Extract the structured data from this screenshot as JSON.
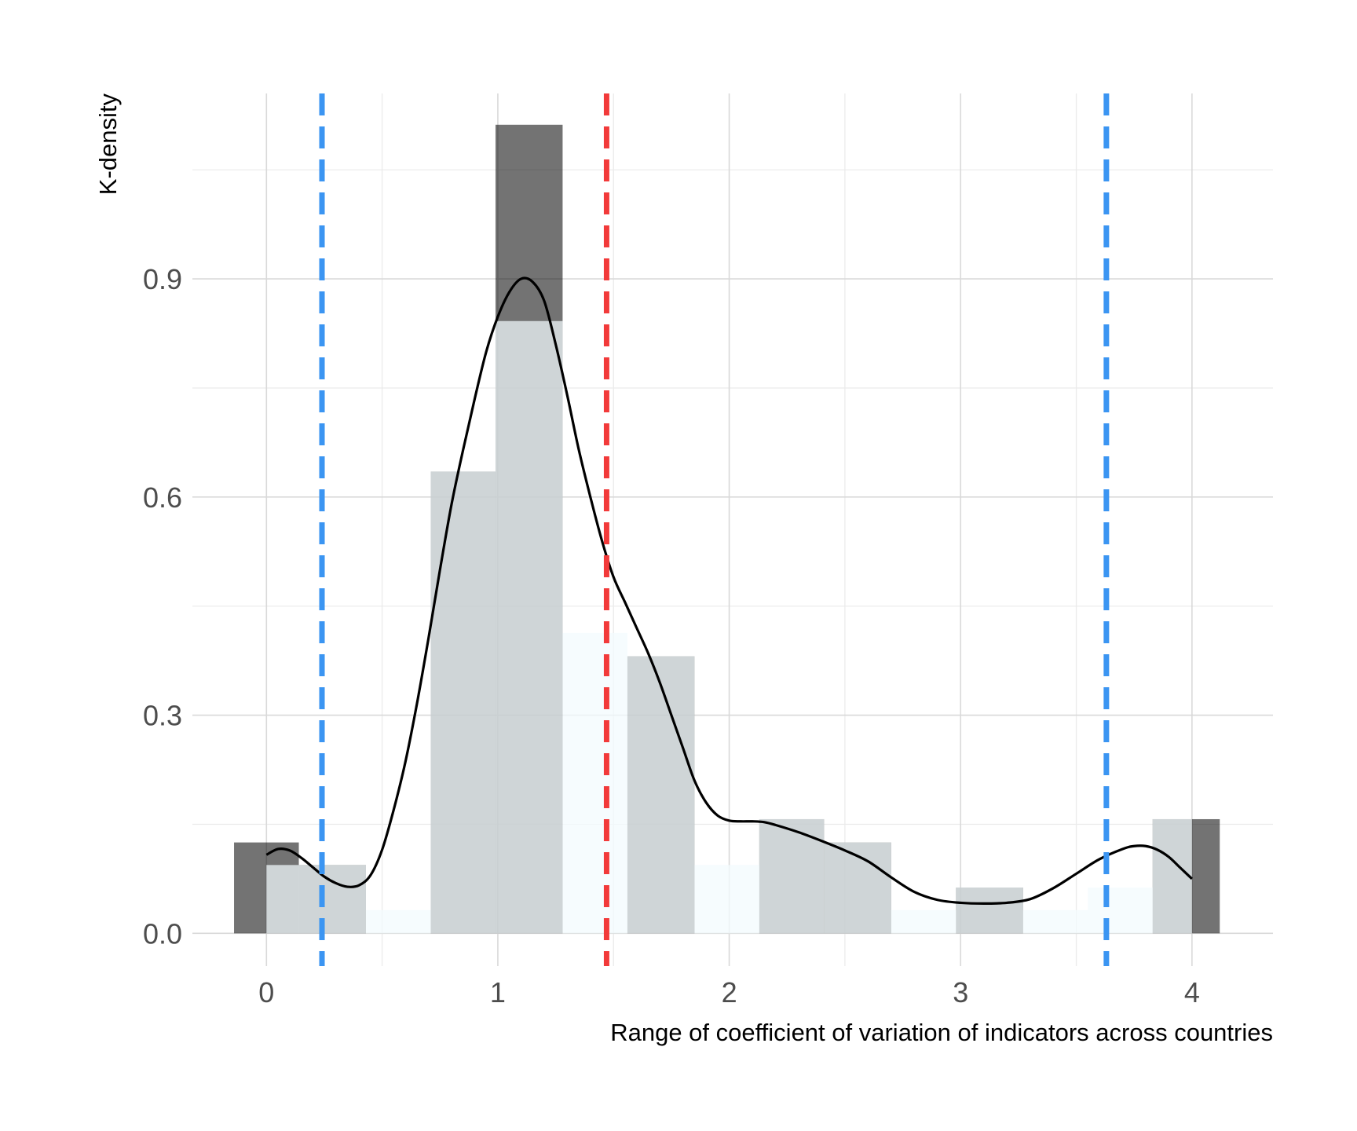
{
  "chart_data": {
    "type": "bar",
    "title": "",
    "xlabel": "Range of coefficient of variation of indicators across countries",
    "ylabel": "K-density",
    "xlim": [
      -0.32,
      4.35
    ],
    "ylim": [
      -0.045,
      1.155
    ],
    "x_ticks": [
      {
        "value": 0,
        "label": "0"
      },
      {
        "value": 1,
        "label": "1"
      },
      {
        "value": 2,
        "label": "2"
      },
      {
        "value": 3,
        "label": "3"
      },
      {
        "value": 4,
        "label": "4"
      }
    ],
    "y_ticks": [
      {
        "value": 0.0,
        "label": "0.0"
      },
      {
        "value": 0.3,
        "label": "0.3"
      },
      {
        "value": 0.6,
        "label": "0.6"
      },
      {
        "value": 0.9,
        "label": "0.9"
      }
    ],
    "grid": true,
    "series": [
      {
        "kind": "histogram",
        "color": "#000000",
        "opacity": 0.55,
        "bins": [
          {
            "x0": -0.14,
            "x1": 0.14,
            "value": 0.125
          },
          {
            "x0": 0.14,
            "x1": 0.43,
            "value": 0.094
          },
          {
            "x0": 0.43,
            "x1": 0.71,
            "value": 0.0
          },
          {
            "x0": 0.71,
            "x1": 0.99,
            "value": 0.635
          },
          {
            "x0": 0.99,
            "x1": 1.28,
            "value": 1.112
          },
          {
            "x0": 1.28,
            "x1": 1.56,
            "value": 0.0
          },
          {
            "x0": 1.56,
            "x1": 1.85,
            "value": 0.381
          },
          {
            "x0": 1.85,
            "x1": 2.13,
            "value": 0.0
          },
          {
            "x0": 2.13,
            "x1": 2.41,
            "value": 0.157
          },
          {
            "x0": 2.41,
            "x1": 2.7,
            "value": 0.125
          },
          {
            "x0": 2.7,
            "x1": 2.98,
            "value": 0.0
          },
          {
            "x0": 2.98,
            "x1": 3.27,
            "value": 0.063
          },
          {
            "x0": 3.27,
            "x1": 3.55,
            "value": 0.0
          },
          {
            "x0": 3.55,
            "x1": 3.83,
            "value": 0.0
          },
          {
            "x0": 3.83,
            "x1": 4.12,
            "value": 0.157
          }
        ]
      },
      {
        "kind": "histogram",
        "color": "#f2fbfd",
        "opacity": 0.72,
        "bins": [
          {
            "x0": 0.0,
            "x1": 0.43,
            "value": 0.094
          },
          {
            "x0": 0.43,
            "x1": 0.71,
            "value": 0.032
          },
          {
            "x0": 0.71,
            "x1": 0.99,
            "value": 0.635
          },
          {
            "x0": 0.99,
            "x1": 1.28,
            "value": 0.842
          },
          {
            "x0": 1.28,
            "x1": 1.56,
            "value": 0.413
          },
          {
            "x0": 1.56,
            "x1": 1.85,
            "value": 0.381
          },
          {
            "x0": 1.85,
            "x1": 2.13,
            "value": 0.094
          },
          {
            "x0": 2.13,
            "x1": 2.41,
            "value": 0.157
          },
          {
            "x0": 2.41,
            "x1": 2.7,
            "value": 0.125
          },
          {
            "x0": 2.7,
            "x1": 2.98,
            "value": 0.032
          },
          {
            "x0": 2.98,
            "x1": 3.27,
            "value": 0.063
          },
          {
            "x0": 3.27,
            "x1": 3.55,
            "value": 0.032
          },
          {
            "x0": 3.55,
            "x1": 3.83,
            "value": 0.063
          },
          {
            "x0": 3.83,
            "x1": 4.0,
            "value": 0.157
          }
        ]
      },
      {
        "kind": "density",
        "color": "#000000",
        "points": [
          [
            0.0,
            0.108
          ],
          [
            0.05,
            0.116
          ],
          [
            0.1,
            0.114
          ],
          [
            0.15,
            0.104
          ],
          [
            0.2,
            0.091
          ],
          [
            0.25,
            0.078
          ],
          [
            0.3,
            0.069
          ],
          [
            0.35,
            0.064
          ],
          [
            0.4,
            0.066
          ],
          [
            0.45,
            0.08
          ],
          [
            0.5,
            0.115
          ],
          [
            0.55,
            0.17
          ],
          [
            0.6,
            0.235
          ],
          [
            0.65,
            0.315
          ],
          [
            0.7,
            0.405
          ],
          [
            0.75,
            0.5
          ],
          [
            0.8,
            0.59
          ],
          [
            0.85,
            0.665
          ],
          [
            0.9,
            0.735
          ],
          [
            0.95,
            0.8
          ],
          [
            1.0,
            0.848
          ],
          [
            1.05,
            0.882
          ],
          [
            1.1,
            0.9
          ],
          [
            1.15,
            0.896
          ],
          [
            1.2,
            0.87
          ],
          [
            1.25,
            0.81
          ],
          [
            1.3,
            0.74
          ],
          [
            1.35,
            0.665
          ],
          [
            1.4,
            0.6
          ],
          [
            1.45,
            0.54
          ],
          [
            1.5,
            0.49
          ],
          [
            1.55,
            0.455
          ],
          [
            1.6,
            0.42
          ],
          [
            1.65,
            0.385
          ],
          [
            1.7,
            0.345
          ],
          [
            1.75,
            0.3
          ],
          [
            1.8,
            0.255
          ],
          [
            1.85,
            0.21
          ],
          [
            1.9,
            0.18
          ],
          [
            1.95,
            0.162
          ],
          [
            2.0,
            0.155
          ],
          [
            2.05,
            0.154
          ],
          [
            2.1,
            0.154
          ],
          [
            2.15,
            0.153
          ],
          [
            2.2,
            0.149
          ],
          [
            2.3,
            0.139
          ],
          [
            2.4,
            0.127
          ],
          [
            2.5,
            0.114
          ],
          [
            2.6,
            0.099
          ],
          [
            2.7,
            0.077
          ],
          [
            2.8,
            0.057
          ],
          [
            2.9,
            0.046
          ],
          [
            3.0,
            0.042
          ],
          [
            3.1,
            0.041
          ],
          [
            3.2,
            0.042
          ],
          [
            3.3,
            0.047
          ],
          [
            3.4,
            0.062
          ],
          [
            3.5,
            0.082
          ],
          [
            3.6,
            0.102
          ],
          [
            3.7,
            0.116
          ],
          [
            3.75,
            0.12
          ],
          [
            3.8,
            0.12
          ],
          [
            3.85,
            0.115
          ],
          [
            3.9,
            0.105
          ],
          [
            3.95,
            0.09
          ],
          [
            4.0,
            0.075
          ]
        ]
      }
    ],
    "vlines": [
      {
        "x": 0.24,
        "color": "#3b95f2"
      },
      {
        "x": 1.47,
        "color": "#f23a3a"
      },
      {
        "x": 3.63,
        "color": "#3b95f2"
      }
    ]
  }
}
